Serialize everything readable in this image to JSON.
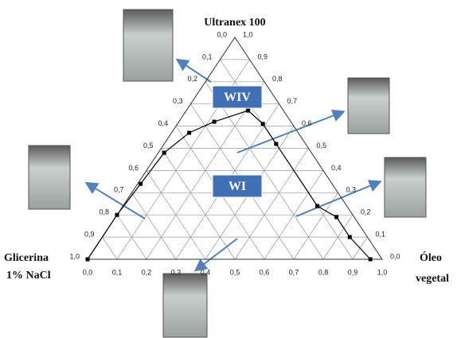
{
  "chart_data": {
    "type": "ternary",
    "title": "Ultranex 100",
    "left_vertex_label": [
      "Glicerina",
      "1% NaCl"
    ],
    "right_vertex_label": [
      "Óleo",
      "vegetal"
    ],
    "regions": [
      "WIV",
      "WI"
    ],
    "bottom_axis_ticks": [
      {
        "value": 0,
        "label": "0,0"
      },
      {
        "value": 0.1,
        "label": "0,1"
      },
      {
        "value": 0.2,
        "label": "0,2"
      },
      {
        "value": 0.3,
        "label": "0,3"
      },
      {
        "value": 0.4,
        "label": "0,4"
      },
      {
        "value": 0.5,
        "label": "0,5"
      },
      {
        "value": 0.6,
        "label": "0,6"
      },
      {
        "value": 0.7,
        "label": "0,7"
      },
      {
        "value": 0.8,
        "label": "0,8"
      },
      {
        "value": 0.9,
        "label": "0,9"
      },
      {
        "value": 1,
        "label": "1,0"
      }
    ],
    "left_axis_ticks": [
      {
        "value": 0,
        "label": "0,0"
      },
      {
        "value": 0.1,
        "label": "0,1"
      },
      {
        "value": 0.2,
        "label": "0,2"
      },
      {
        "value": 0.3,
        "label": "0,3"
      },
      {
        "value": 0.4,
        "label": "0,4"
      },
      {
        "value": 0.5,
        "label": "0,5"
      },
      {
        "value": 0.6,
        "label": "0,6"
      },
      {
        "value": 0.7,
        "label": "0,7"
      },
      {
        "value": 0.8,
        "label": "0,8"
      },
      {
        "value": 0.9,
        "label": "0,9"
      },
      {
        "value": 1,
        "label": "1,0"
      }
    ],
    "right_axis_ticks": [
      {
        "value": 0,
        "label": "0,0"
      },
      {
        "value": 0.1,
        "label": "0,1"
      },
      {
        "value": 0.2,
        "label": "0,2"
      },
      {
        "value": 0.3,
        "label": "0,3"
      },
      {
        "value": 0.4,
        "label": "0,4"
      },
      {
        "value": 0.5,
        "label": "0,5"
      },
      {
        "value": 0.6,
        "label": "0,6"
      },
      {
        "value": 0.7,
        "label": "0,7"
      },
      {
        "value": 0.8,
        "label": "0,8"
      },
      {
        "value": 0.9,
        "label": "0,9"
      },
      {
        "value": 1,
        "label": "1,0"
      }
    ],
    "grid": true,
    "series": [
      {
        "color": "#000000",
        "oleo": [
          0,
          0,
          0.01,
          0.02,
          0.06,
          0.12,
          0.21,
          0.29,
          0.38,
          0.66,
          0.75,
          0.84,
          0.96
        ],
        "ultranex": [
          0,
          0.2,
          0.34,
          0.48,
          0.57,
          0.62,
          0.67,
          0.61,
          0.52,
          0.24,
          0.19,
          0.1,
          0
        ]
      }
    ]
  }
}
